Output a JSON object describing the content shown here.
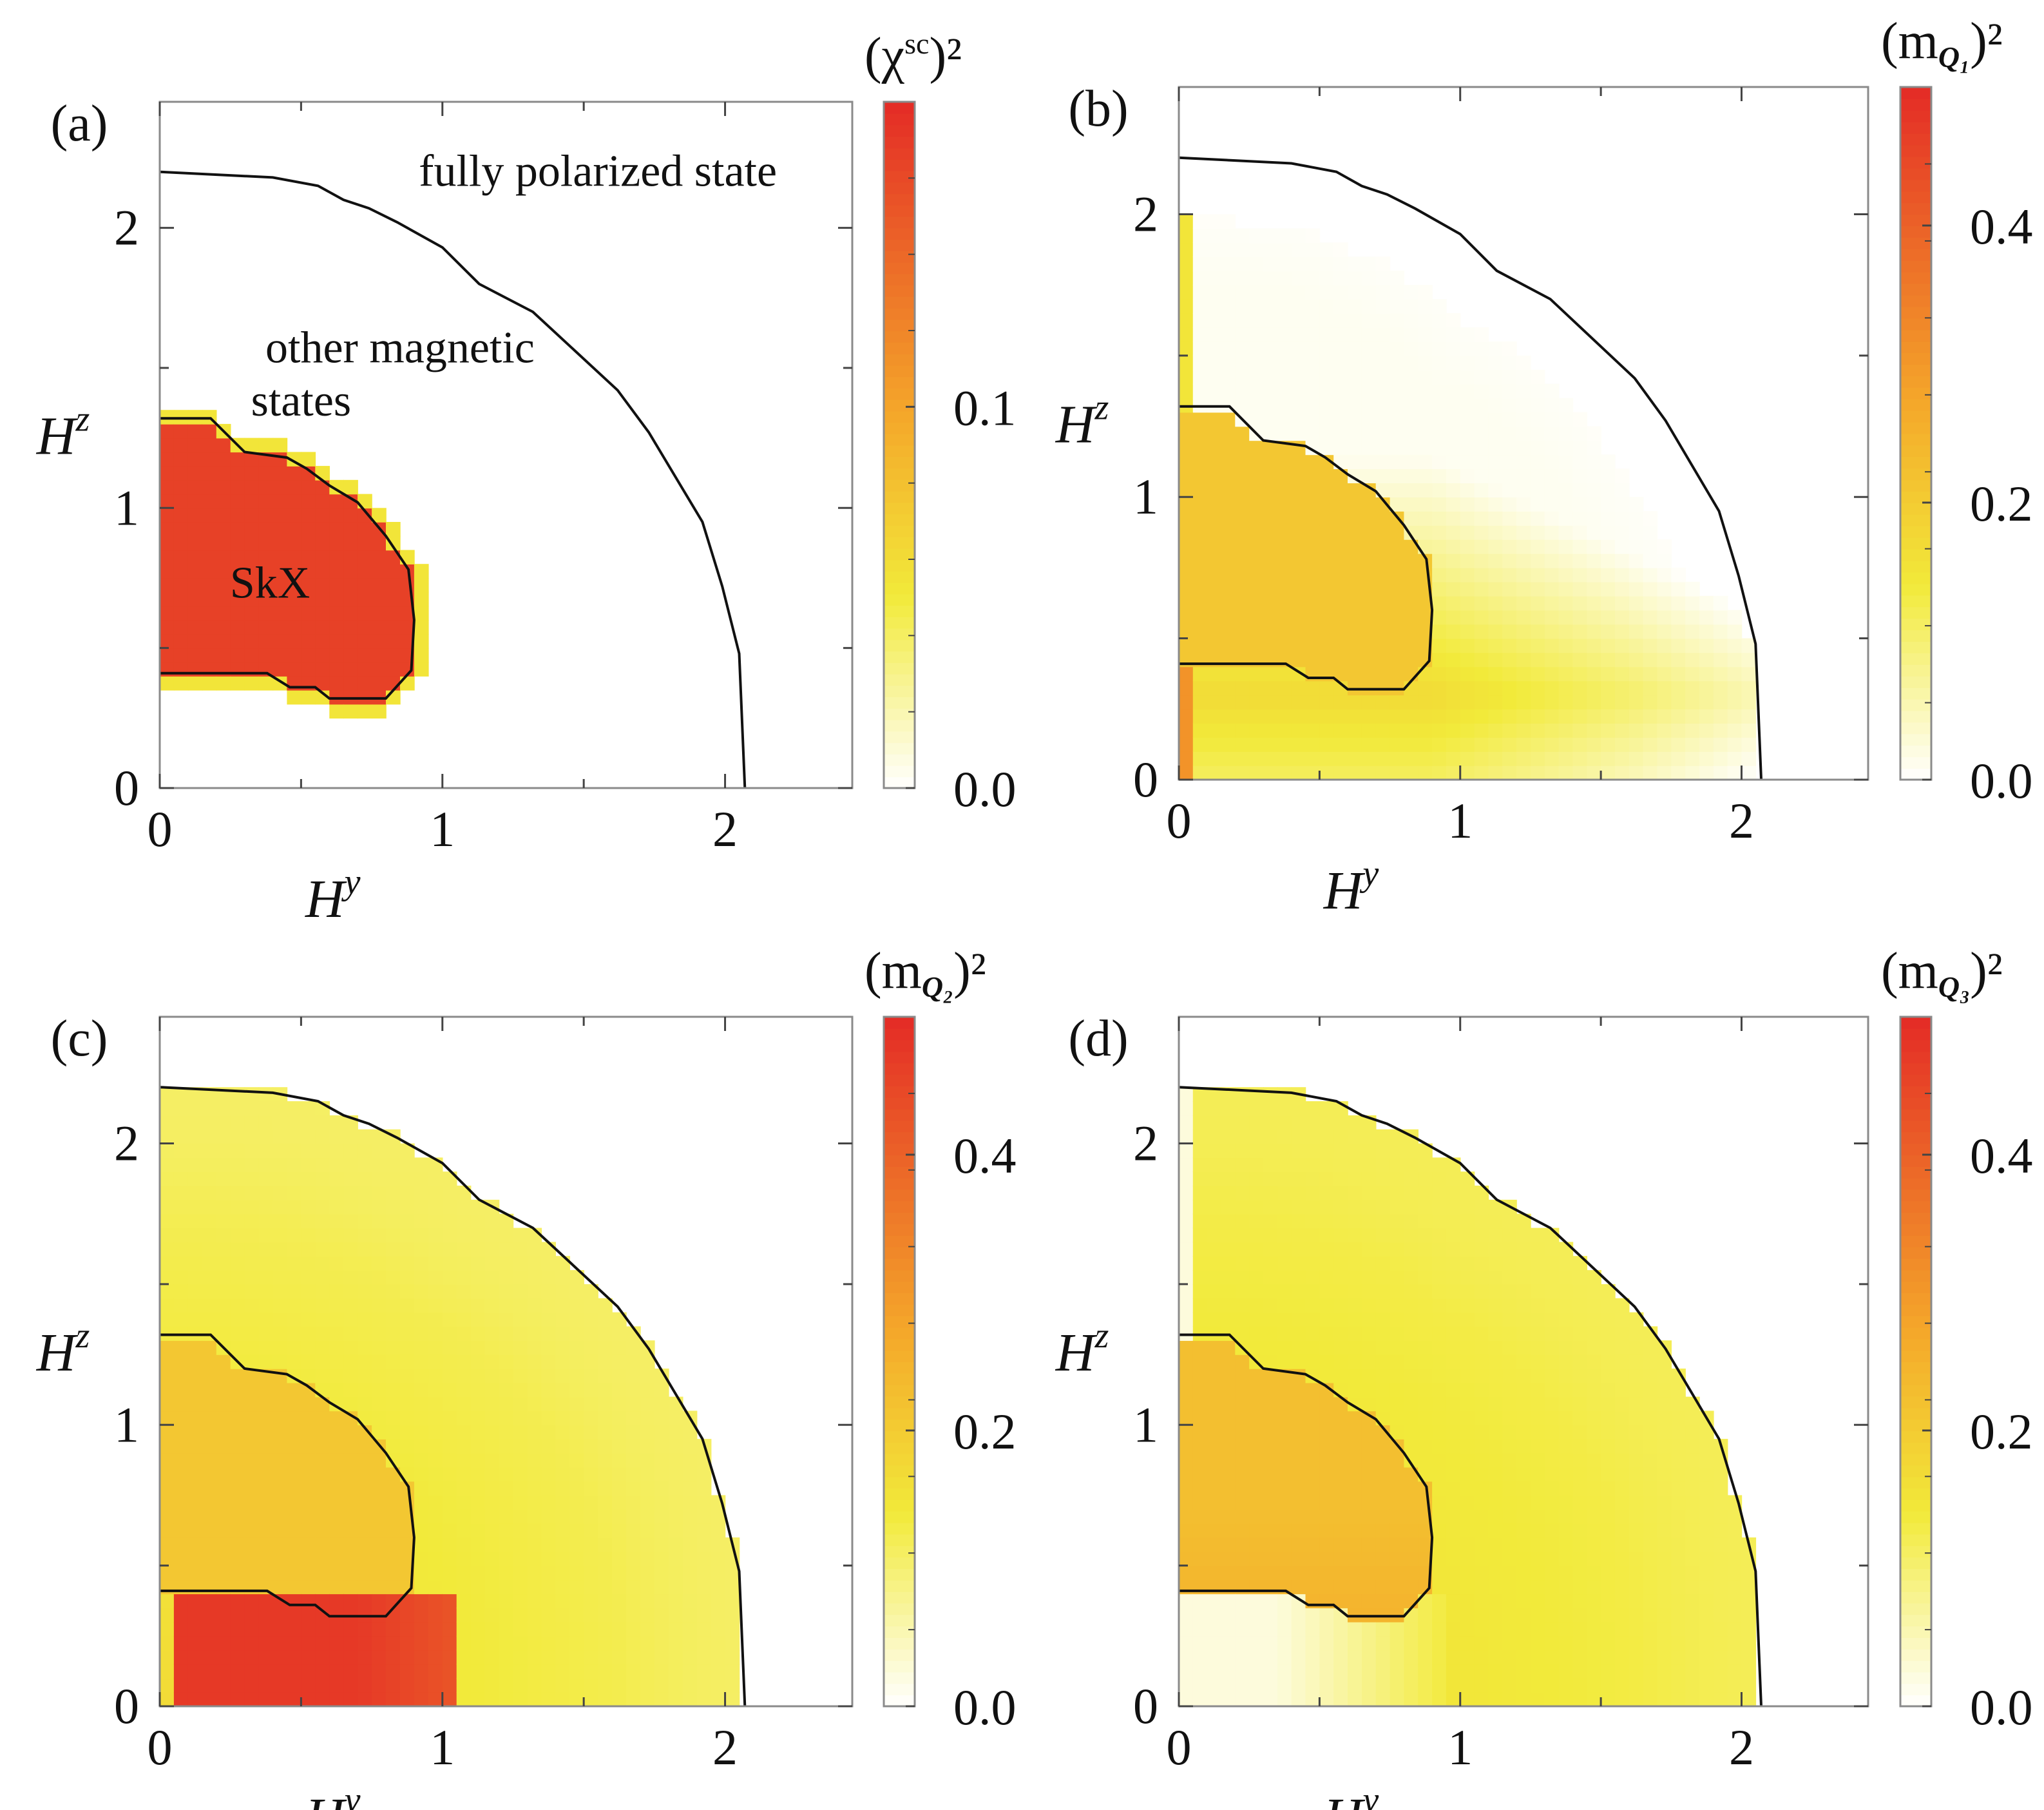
{
  "figure_title": "",
  "colorscale": {
    "stops": [
      "#ffffff",
      "#f2ea3a",
      "#f4a62a",
      "#e42b26"
    ]
  },
  "chart_data": [
    {
      "type": "heatmap",
      "panel": "(a)",
      "xlabel": "H",
      "xlabel_sup": "y",
      "ylabel": "H",
      "ylabel_sup": "z",
      "xlim": [
        0,
        2.45
      ],
      "ylim": [
        0,
        2.45
      ],
      "xticks": [
        0,
        1,
        2
      ],
      "yticks": [
        0,
        1,
        2
      ],
      "colorbar": {
        "title_main": "(χ",
        "title_sup": "sc",
        "title_close": ")²",
        "range": [
          0,
          0.18
        ],
        "ticks": [
          0.0,
          0.1
        ],
        "tick_labels": [
          "0.0",
          "0.1"
        ]
      },
      "model": "skx_scalar_chirality",
      "annotations": [
        {
          "text": "fully polarized state",
          "x": 1.55,
          "y": 2.15
        },
        {
          "text": "other magnetic",
          "x": 0.85,
          "y": 1.52
        },
        {
          "text": "states",
          "x": 0.5,
          "y": 1.33
        },
        {
          "text": "SkX",
          "x": 0.39,
          "y": 0.68
        }
      ]
    },
    {
      "type": "heatmap",
      "panel": "(b)",
      "xlabel": "H",
      "xlabel_sup": "y",
      "ylabel": "H",
      "ylabel_sup": "z",
      "xlim": [
        0,
        2.45
      ],
      "ylim": [
        0,
        2.45
      ],
      "xticks": [
        0,
        1,
        2
      ],
      "yticks": [
        0,
        1,
        2
      ],
      "colorbar": {
        "title_main": "(m",
        "title_sub": "Q₁",
        "title_close": ")²",
        "range": [
          0,
          0.5
        ],
        "ticks": [
          0.0,
          0.2,
          0.4
        ],
        "tick_labels": [
          "0.0",
          "0.2",
          "0.4"
        ]
      },
      "model": "mQ1",
      "annotations": []
    },
    {
      "type": "heatmap",
      "panel": "(c)",
      "xlabel": "H",
      "xlabel_sup": "y",
      "ylabel": "H",
      "ylabel_sup": "z",
      "xlim": [
        0,
        2.45
      ],
      "ylim": [
        0,
        2.45
      ],
      "xticks": [
        0,
        1,
        2
      ],
      "yticks": [
        0,
        1,
        2
      ],
      "colorbar": {
        "title_main": "(m",
        "title_sub": "Q₂",
        "title_close": ")²",
        "range": [
          0,
          0.5
        ],
        "ticks": [
          0.0,
          0.2,
          0.4
        ],
        "tick_labels": [
          "0.0",
          "0.2",
          "0.4"
        ]
      },
      "model": "mQ2",
      "annotations": []
    },
    {
      "type": "heatmap",
      "panel": "(d)",
      "xlabel": "H",
      "xlabel_sup": "y",
      "ylabel": "H",
      "ylabel_sup": "z",
      "xlim": [
        0,
        2.45
      ],
      "ylim": [
        0,
        2.45
      ],
      "xticks": [
        0,
        1,
        2
      ],
      "yticks": [
        0,
        1,
        2
      ],
      "colorbar": {
        "title_main": "(m",
        "title_sub": "Q₃",
        "title_close": ")²",
        "range": [
          0,
          0.5
        ],
        "ticks": [
          0.0,
          0.2,
          0.4
        ],
        "tick_labels": [
          "0.0",
          "0.2",
          "0.4"
        ]
      },
      "model": "mQ3",
      "annotations": []
    }
  ],
  "boundaries": {
    "fully_polarized": [
      [
        0,
        2.2
      ],
      [
        0.4,
        2.18
      ],
      [
        0.56,
        2.15
      ],
      [
        0.65,
        2.1
      ],
      [
        0.74,
        2.07
      ],
      [
        0.84,
        2.02
      ],
      [
        1.0,
        1.93
      ],
      [
        1.13,
        1.8
      ],
      [
        1.32,
        1.7
      ],
      [
        1.62,
        1.42
      ],
      [
        1.73,
        1.27
      ],
      [
        1.92,
        0.95
      ],
      [
        1.99,
        0.72
      ],
      [
        2.05,
        0.48
      ],
      [
        2.07,
        0
      ]
    ],
    "skx": [
      [
        0,
        1.32
      ],
      [
        0.18,
        1.32
      ],
      [
        0.3,
        1.2
      ],
      [
        0.45,
        1.18
      ],
      [
        0.52,
        1.14
      ],
      [
        0.6,
        1.08
      ],
      [
        0.7,
        1.02
      ],
      [
        0.8,
        0.9
      ],
      [
        0.88,
        0.78
      ],
      [
        0.9,
        0.6
      ],
      [
        0.89,
        0.42
      ],
      [
        0.8,
        0.32
      ],
      [
        0.6,
        0.32
      ],
      [
        0.55,
        0.36
      ],
      [
        0.46,
        0.36
      ],
      [
        0.38,
        0.41
      ],
      [
        0,
        0.41
      ]
    ]
  }
}
